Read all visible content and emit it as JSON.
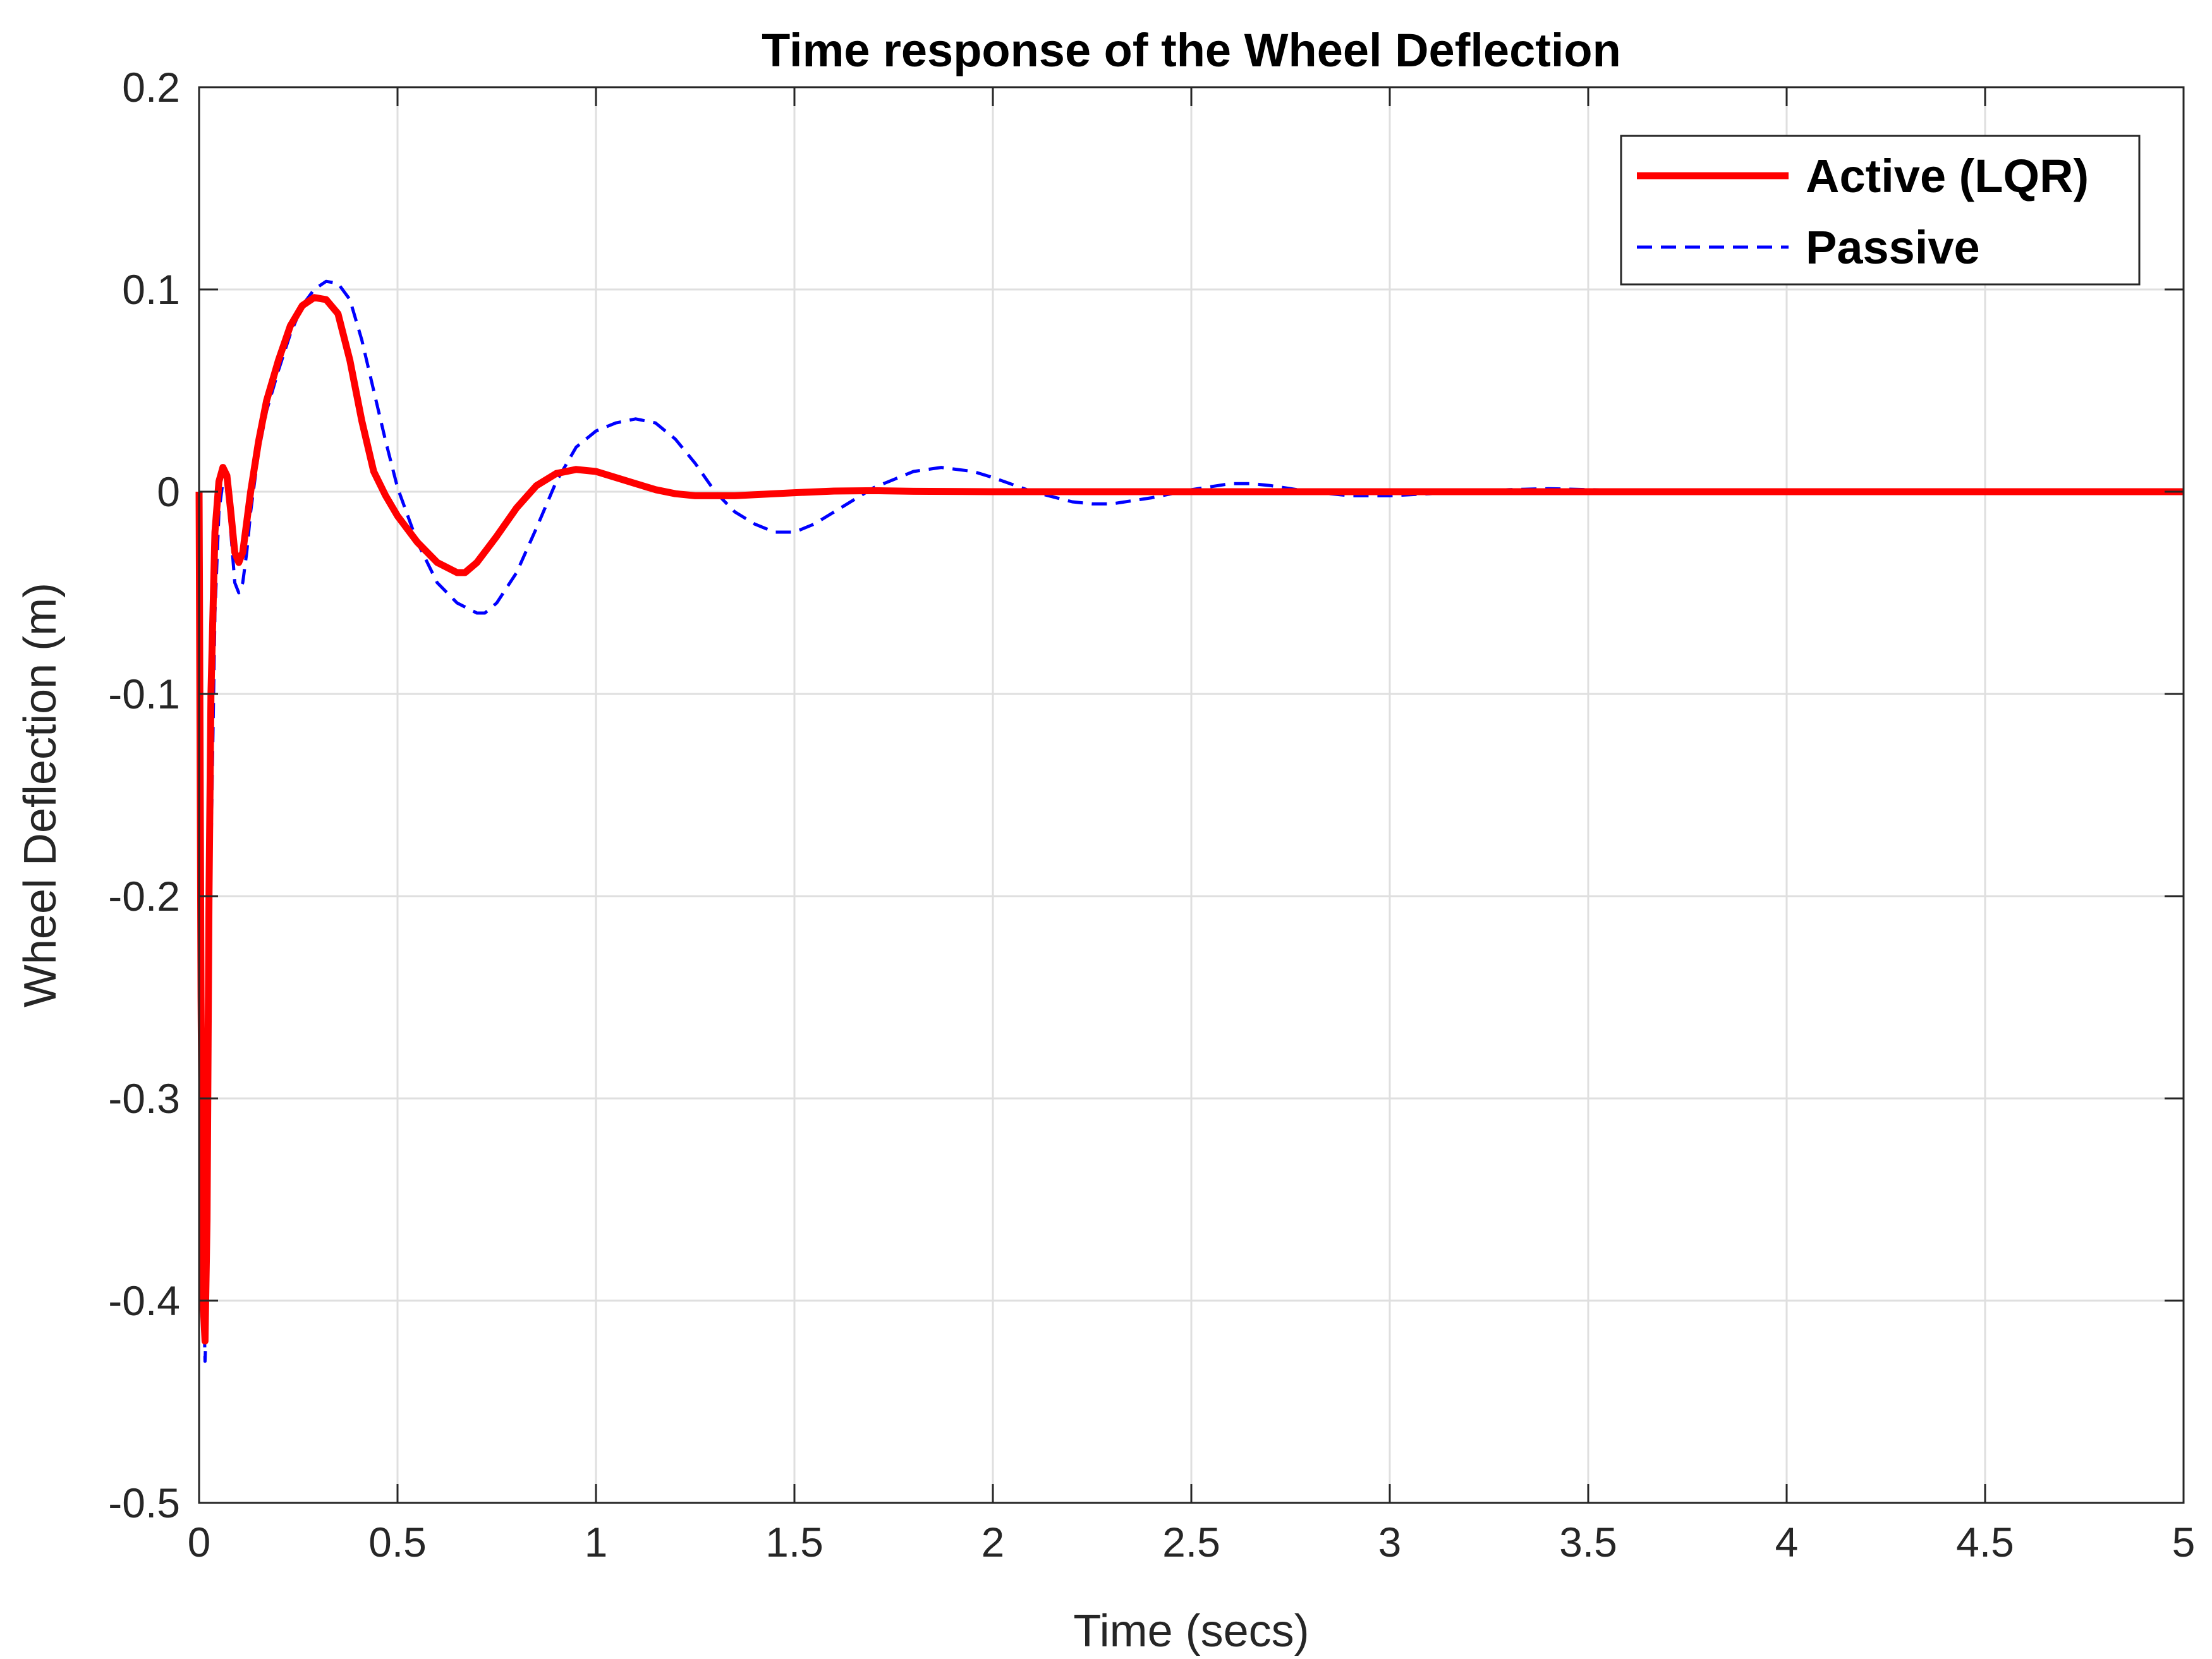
{
  "chart_data": {
    "type": "line",
    "title": "Time response of the Wheel Deflection",
    "xlabel": "Time (secs)",
    "ylabel": "Wheel Deflection (m)",
    "xlim": [
      0,
      5
    ],
    "ylim": [
      -0.5,
      0.2
    ],
    "xticks": [
      0,
      0.5,
      1,
      1.5,
      2,
      2.5,
      3,
      3.5,
      4,
      4.5,
      5
    ],
    "yticks": [
      -0.5,
      -0.4,
      -0.3,
      -0.2,
      -0.1,
      0,
      0.1,
      0.2
    ],
    "xtick_labels": [
      "0",
      "0.5",
      "1",
      "1.5",
      "2",
      "2.5",
      "3",
      "3.5",
      "4",
      "4.5",
      "5"
    ],
    "ytick_labels": [
      "-0.5",
      "-0.4",
      "-0.3",
      "-0.2",
      "-0.1",
      "0",
      "0.1",
      "0.2"
    ],
    "grid": true,
    "legend_position": "top-right",
    "series": [
      {
        "name": "Active (LQR)",
        "color": "#ff0000",
        "style": "solid",
        "x": [
          0,
          0.005,
          0.01,
          0.015,
          0.02,
          0.025,
          0.03,
          0.04,
          0.05,
          0.06,
          0.07,
          0.08,
          0.09,
          0.1,
          0.11,
          0.12,
          0.13,
          0.15,
          0.17,
          0.2,
          0.23,
          0.26,
          0.29,
          0.32,
          0.35,
          0.38,
          0.41,
          0.44,
          0.47,
          0.5,
          0.55,
          0.6,
          0.65,
          0.67,
          0.7,
          0.75,
          0.8,
          0.85,
          0.9,
          0.95,
          1.0,
          1.05,
          1.1,
          1.15,
          1.2,
          1.25,
          1.3,
          1.35,
          1.4,
          1.5,
          1.6,
          1.7,
          1.8,
          2.0,
          2.5,
          3.0,
          3.5,
          4.0,
          4.5,
          5.0
        ],
        "y": [
          0,
          -0.25,
          -0.4,
          -0.42,
          -0.36,
          -0.2,
          -0.1,
          -0.02,
          0.005,
          0.012,
          0.008,
          -0.01,
          -0.03,
          -0.035,
          -0.03,
          -0.015,
          0.0,
          0.025,
          0.045,
          0.065,
          0.082,
          0.092,
          0.096,
          0.095,
          0.088,
          0.065,
          0.035,
          0.01,
          -0.002,
          -0.012,
          -0.025,
          -0.035,
          -0.04,
          -0.04,
          -0.035,
          -0.022,
          -0.008,
          0.003,
          0.009,
          0.011,
          0.01,
          0.007,
          0.004,
          0.001,
          -0.001,
          -0.002,
          -0.002,
          -0.002,
          -0.0015,
          -0.0005,
          0.0003,
          0.0005,
          0.0002,
          0,
          0,
          0,
          0,
          0,
          0,
          0
        ]
      },
      {
        "name": "Passive",
        "color": "#0000ff",
        "style": "dashed",
        "x": [
          0,
          0.005,
          0.01,
          0.015,
          0.02,
          0.025,
          0.03,
          0.04,
          0.05,
          0.06,
          0.07,
          0.08,
          0.09,
          0.1,
          0.11,
          0.12,
          0.13,
          0.15,
          0.17,
          0.2,
          0.23,
          0.26,
          0.29,
          0.32,
          0.35,
          0.38,
          0.41,
          0.44,
          0.47,
          0.5,
          0.55,
          0.6,
          0.65,
          0.7,
          0.72,
          0.75,
          0.8,
          0.85,
          0.9,
          0.95,
          1.0,
          1.05,
          1.1,
          1.15,
          1.2,
          1.25,
          1.3,
          1.35,
          1.4,
          1.45,
          1.5,
          1.55,
          1.6,
          1.7,
          1.8,
          1.87,
          1.95,
          2.0,
          2.1,
          2.2,
          2.25,
          2.3,
          2.4,
          2.5,
          2.6,
          2.65,
          2.7,
          2.8,
          2.9,
          3.0,
          3.1,
          3.2,
          3.3,
          3.4,
          3.5,
          4.0,
          4.5,
          5.0
        ],
        "y": [
          0,
          -0.2,
          -0.38,
          -0.43,
          -0.4,
          -0.3,
          -0.18,
          -0.06,
          -0.01,
          0.005,
          0.003,
          -0.02,
          -0.045,
          -0.05,
          -0.045,
          -0.03,
          -0.01,
          0.02,
          0.04,
          0.06,
          0.078,
          0.092,
          0.1,
          0.104,
          0.103,
          0.095,
          0.075,
          0.05,
          0.025,
          0.002,
          -0.025,
          -0.045,
          -0.055,
          -0.06,
          -0.06,
          -0.055,
          -0.04,
          -0.018,
          0.005,
          0.022,
          0.03,
          0.034,
          0.036,
          0.034,
          0.026,
          0.014,
          0.0,
          -0.01,
          -0.016,
          -0.02,
          -0.02,
          -0.016,
          -0.01,
          0.002,
          0.01,
          0.012,
          0.01,
          0.007,
          0.0,
          -0.005,
          -0.006,
          -0.006,
          -0.003,
          0.001,
          0.004,
          0.004,
          0.003,
          0.0,
          -0.002,
          -0.002,
          -0.001,
          0.0,
          0.001,
          0.0015,
          0.001,
          0.0,
          0.0,
          0.0
        ]
      }
    ]
  }
}
